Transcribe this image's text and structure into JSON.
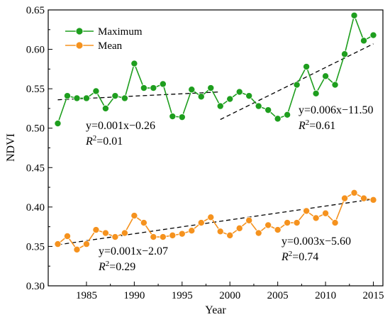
{
  "chart_data": {
    "type": "line",
    "xlabel": "Year",
    "ylabel": "NDVI",
    "xlim": [
      1981,
      2016
    ],
    "ylim": [
      0.3,
      0.65
    ],
    "x_ticks": [
      "1985",
      "1990",
      "1995",
      "2000",
      "2005",
      "2010",
      "2015"
    ],
    "y_ticks": [
      "0.30",
      "0.35",
      "0.40",
      "0.45",
      "0.50",
      "0.55",
      "0.60",
      "0.65"
    ],
    "legend_position": "top-left",
    "x": [
      1982,
      1983,
      1984,
      1985,
      1986,
      1987,
      1988,
      1989,
      1990,
      1991,
      1992,
      1993,
      1994,
      1995,
      1996,
      1997,
      1998,
      1999,
      2000,
      2001,
      2002,
      2003,
      2004,
      2005,
      2006,
      2007,
      2008,
      2009,
      2010,
      2011,
      2012,
      2013,
      2014,
      2015
    ],
    "series": [
      {
        "name": "Maximum",
        "color": "#1e9e1e",
        "values": [
          0.506,
          0.541,
          0.538,
          0.538,
          0.547,
          0.525,
          0.541,
          0.538,
          0.582,
          0.551,
          0.551,
          0.556,
          0.515,
          0.514,
          0.549,
          0.54,
          0.551,
          0.528,
          0.537,
          0.546,
          0.541,
          0.528,
          0.523,
          0.512,
          0.517,
          0.555,
          0.578,
          0.544,
          0.566,
          0.555,
          0.594,
          0.643,
          0.611,
          0.618
        ]
      },
      {
        "name": "Mean",
        "color": "#f5921e",
        "values": [
          0.353,
          0.363,
          0.346,
          0.353,
          0.371,
          0.367,
          0.362,
          0.367,
          0.389,
          0.38,
          0.362,
          0.362,
          0.364,
          0.366,
          0.37,
          0.38,
          0.387,
          0.369,
          0.364,
          0.373,
          0.383,
          0.367,
          0.377,
          0.371,
          0.38,
          0.38,
          0.395,
          0.386,
          0.392,
          0.38,
          0.411,
          0.418,
          0.411,
          0.409
        ]
      }
    ],
    "trend_lines": [
      {
        "series": "Maximum",
        "x_start": 1982,
        "y_start": 0.536,
        "x_end": 1999,
        "y_end": 0.546
      },
      {
        "series": "Maximum",
        "x_start": 1999,
        "y_start": 0.511,
        "x_end": 2015,
        "y_end": 0.607
      },
      {
        "series": "Mean",
        "x_start": 1982,
        "y_start": 0.352,
        "x_end": 2015,
        "y_end": 0.41
      }
    ],
    "annotations": [
      {
        "equation": "y=0.001x−0.26",
        "r2_value": "=0.01"
      },
      {
        "equation": "y=0.006x−11.50",
        "r2_value": "=0.61"
      },
      {
        "equation": "y=0.001x−2.07",
        "r2_value": "=0.29"
      },
      {
        "equation": "y=0.003x−5.60",
        "r2_value": "=0.74"
      }
    ]
  }
}
